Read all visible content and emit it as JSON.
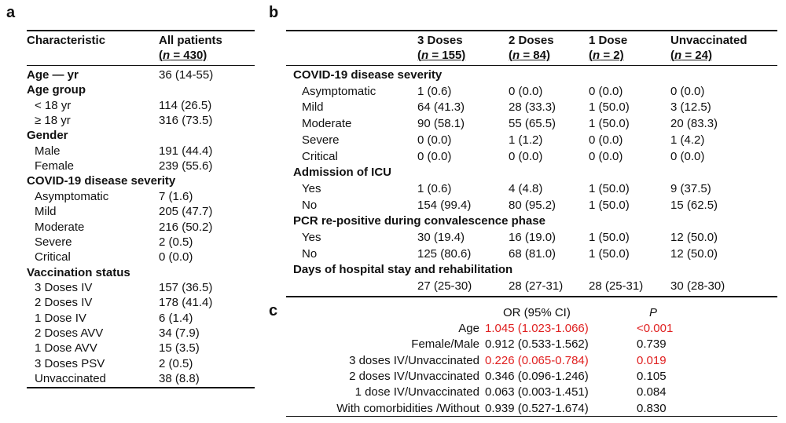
{
  "labels": {
    "a": "a",
    "b": "b",
    "c": "c"
  },
  "table_a": {
    "col1_header": "Characteristic",
    "col2_header_line1": "All patients",
    "col2_header_n_prefix": "n",
    "col2_header_n_suffix": " = 430)",
    "rows": [
      {
        "label": "Age — yr",
        "value": "36 (14-55)",
        "bold": true
      },
      {
        "label": "Age group",
        "value": "",
        "bold": true
      },
      {
        "label": "< 18 yr",
        "value": "114 (26.5)",
        "bold": false
      },
      {
        "label": "≥ 18 yr",
        "value": "316 (73.5)",
        "bold": false
      },
      {
        "label": "Gender",
        "value": "",
        "bold": true
      },
      {
        "label": "Male",
        "value": "191 (44.4)",
        "bold": false
      },
      {
        "label": "Female",
        "value": "239 (55.6)",
        "bold": false
      },
      {
        "label": "COVID-19 disease severity",
        "value": "",
        "bold": true
      },
      {
        "label": "Asymptomatic",
        "value": "7 (1.6)",
        "bold": false
      },
      {
        "label": "Mild",
        "value": "205 (47.7)",
        "bold": false
      },
      {
        "label": "Moderate",
        "value": "216 (50.2)",
        "bold": false
      },
      {
        "label": "Severe",
        "value": "2 (0.5)",
        "bold": false
      },
      {
        "label": "Critical",
        "value": "0 (0.0)",
        "bold": false
      },
      {
        "label": "Vaccination status",
        "value": "",
        "bold": true
      },
      {
        "label": "3 Doses IV",
        "value": "157 (36.5)",
        "bold": false
      },
      {
        "label": "2 Doses IV",
        "value": "178 (41.4)",
        "bold": false
      },
      {
        "label": "1 Dose IV",
        "value": "6 (1.4)",
        "bold": false
      },
      {
        "label": "2 Doses AVV",
        "value": "34 (7.9)",
        "bold": false
      },
      {
        "label": "1 Dose AVV",
        "value": "15 (3.5)",
        "bold": false
      },
      {
        "label": "3 Doses PSV",
        "value": "2 (0.5)",
        "bold": false
      },
      {
        "label": "Unvaccinated",
        "value": "38 (8.8)",
        "bold": false
      }
    ]
  },
  "table_b": {
    "headers": [
      {
        "line1": "3 Doses",
        "n": "n",
        "suffix": " = 155)"
      },
      {
        "line1": "2 Doses",
        "n": "n",
        "suffix": " = 84)"
      },
      {
        "line1": "1 Dose",
        "n": "n",
        "suffix": " = 2)"
      },
      {
        "line1": "Unvaccinated",
        "n": "n",
        "suffix": " = 24)"
      }
    ],
    "rows": [
      {
        "label": "COVID-19 disease severity",
        "bold": true,
        "values": [
          "",
          "",
          "",
          ""
        ]
      },
      {
        "label": "Asymptomatic",
        "bold": false,
        "values": [
          "1 (0.6)",
          "0 (0.0)",
          "0 (0.0)",
          "0 (0.0)"
        ]
      },
      {
        "label": "Mild",
        "bold": false,
        "values": [
          "64 (41.3)",
          "28 (33.3)",
          "1 (50.0)",
          "3 (12.5)"
        ]
      },
      {
        "label": "Moderate",
        "bold": false,
        "values": [
          "90 (58.1)",
          "55 (65.5)",
          "1 (50.0)",
          "20 (83.3)"
        ]
      },
      {
        "label": "Severe",
        "bold": false,
        "values": [
          "0 (0.0)",
          "1 (1.2)",
          "0 (0.0)",
          "1 (4.2)"
        ]
      },
      {
        "label": "Critical",
        "bold": false,
        "values": [
          "0 (0.0)",
          "0 (0.0)",
          "0 (0.0)",
          "0 (0.0)"
        ]
      },
      {
        "label": "Admission of ICU",
        "bold": true,
        "values": [
          "",
          "",
          "",
          ""
        ]
      },
      {
        "label": "Yes",
        "bold": false,
        "values": [
          "1 (0.6)",
          "4 (4.8)",
          "1 (50.0)",
          "9 (37.5)"
        ]
      },
      {
        "label": "No",
        "bold": false,
        "values": [
          "154 (99.4)",
          "80 (95.2)",
          "1 (50.0)",
          "15 (62.5)"
        ]
      },
      {
        "label": "PCR re-positive during convalescence phase",
        "bold": true,
        "values": [
          "",
          "",
          "",
          ""
        ]
      },
      {
        "label": "Yes",
        "bold": false,
        "values": [
          "30 (19.4)",
          "16 (19.0)",
          "1 (50.0)",
          "12 (50.0)"
        ]
      },
      {
        "label": "No",
        "bold": false,
        "values": [
          "125 (80.6)",
          "68 (81.0)",
          "1 (50.0)",
          "12 (50.0)"
        ]
      },
      {
        "label": "Days of hospital stay and rehabilitation",
        "bold": true,
        "values": [
          "",
          "",
          "",
          ""
        ]
      },
      {
        "label": "",
        "bold": false,
        "values": [
          "27 (25-30)",
          "28 (27-31)",
          "28 (25-31)",
          "30 (28-30)"
        ]
      }
    ]
  },
  "table_c": {
    "header_or": "OR (95% CI)",
    "header_p": "P",
    "highlight_color": "#e02020",
    "rows": [
      {
        "label": "Age",
        "or": "1.045 (1.023-1.066)",
        "p": "<0.001",
        "significant": true
      },
      {
        "label": "Female/Male",
        "or": "0.912 (0.533-1.562)",
        "p": "0.739",
        "significant": false
      },
      {
        "label": "3 doses IV/Unvaccinated",
        "or": "0.226 (0.065-0.784)",
        "p": "0.019",
        "significant": true
      },
      {
        "label": "2 doses IV/Unvaccinated",
        "or": "0.346 (0.096-1.246)",
        "p": "0.105",
        "significant": false
      },
      {
        "label": "1 dose IV/Unvaccinated",
        "or": "0.063 (0.003-1.451)",
        "p": "0.084",
        "significant": false
      },
      {
        "label": "With comorbidities /Without",
        "or": "0.939 (0.527-1.674)",
        "p": "0.830",
        "significant": false
      }
    ]
  }
}
